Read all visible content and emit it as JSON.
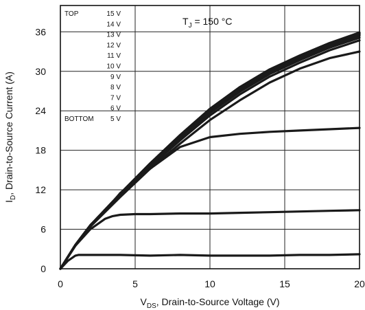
{
  "chart_data": {
    "type": "line",
    "xlabel": {
      "pre": "V",
      "sub": "DS",
      "post": ", Drain-to-Source Voltage (V)"
    },
    "ylabel": {
      "pre": "I",
      "sub": "D",
      "post": ", Drain-to-Source Current (A)"
    },
    "xlim": [
      0,
      20
    ],
    "ylim": [
      0,
      40
    ],
    "x_ticks": [
      0,
      5,
      10,
      15,
      20
    ],
    "y_ticks": [
      0,
      6,
      12,
      18,
      24,
      30,
      36
    ],
    "x_tick_labels": [
      "0",
      "5",
      "10",
      "15",
      "20"
    ],
    "y_tick_labels": [
      "0",
      "6",
      "12",
      "18",
      "24",
      "30",
      "36"
    ],
    "grid": true,
    "annotation": {
      "pre": "T",
      "sub": "J",
      "post": " = 150 °C"
    },
    "legend": {
      "top_label": "TOP",
      "bottom_label": "BOTTOM",
      "entries": [
        "15 V",
        "14 V",
        "13 V",
        "12 V",
        "11 V",
        "10 V",
        "9 V",
        "8 V",
        "7 V",
        "6 V",
        "5 V"
      ]
    },
    "series": [
      {
        "x": [
          0,
          1,
          2,
          4,
          6,
          8,
          10,
          12,
          14,
          16,
          18,
          20
        ],
        "y": [
          0,
          3.6,
          6.6,
          11.4,
          16.0,
          20.3,
          24.3,
          27.6,
          30.3,
          32.4,
          34.3,
          35.9
        ]
      },
      {
        "x": [
          0,
          1,
          2,
          4,
          6,
          8,
          10,
          12,
          14,
          16,
          18,
          20
        ],
        "y": [
          0,
          3.6,
          6.6,
          11.4,
          16.0,
          20.3,
          24.3,
          27.6,
          30.3,
          32.4,
          34.3,
          35.8
        ]
      },
      {
        "x": [
          0,
          1,
          2,
          4,
          6,
          8,
          10,
          12,
          14,
          16,
          18,
          20
        ],
        "y": [
          0,
          3.6,
          6.6,
          11.4,
          16.0,
          20.2,
          24.2,
          27.5,
          30.2,
          32.3,
          34.2,
          35.7
        ]
      },
      {
        "x": [
          0,
          1,
          2,
          4,
          6,
          8,
          10,
          12,
          14,
          16,
          18,
          20
        ],
        "y": [
          0,
          3.6,
          6.6,
          11.3,
          15.9,
          20.1,
          24.1,
          27.4,
          30.1,
          32.2,
          34.1,
          35.6
        ]
      },
      {
        "x": [
          0,
          1,
          2,
          4,
          6,
          8,
          10,
          12,
          14,
          16,
          18,
          20
        ],
        "y": [
          0,
          3.6,
          6.6,
          11.3,
          15.9,
          20.0,
          24.0,
          27.2,
          29.9,
          32.0,
          33.9,
          35.4
        ]
      },
      {
        "x": [
          0,
          1,
          2,
          4,
          6,
          8,
          10,
          12,
          14,
          16,
          18,
          20
        ],
        "y": [
          0,
          3.6,
          6.6,
          11.2,
          15.7,
          19.8,
          23.7,
          26.9,
          29.6,
          31.7,
          33.6,
          35.1
        ]
      },
      {
        "x": [
          0,
          1,
          2,
          4,
          6,
          8,
          10,
          12,
          14,
          16,
          18,
          20
        ],
        "y": [
          0,
          3.6,
          6.5,
          11.1,
          15.5,
          19.5,
          23.3,
          26.5,
          29.2,
          31.3,
          33.2,
          34.7
        ]
      },
      {
        "x": [
          0,
          1,
          2,
          4,
          6,
          8,
          10,
          12,
          14,
          16,
          18,
          20
        ],
        "y": [
          0,
          3.5,
          6.4,
          10.9,
          15.2,
          19.0,
          22.6,
          25.6,
          28.3,
          30.4,
          32.0,
          33.0
        ]
      },
      {
        "x": [
          0,
          1,
          2,
          3,
          4,
          6,
          8,
          10,
          12,
          14,
          16,
          18,
          20
        ],
        "y": [
          0,
          3.5,
          6.4,
          8.8,
          11.5,
          15.2,
          18.5,
          20.0,
          20.5,
          20.8,
          21.0,
          21.2,
          21.4
        ]
      },
      {
        "x": [
          0,
          1,
          2,
          3,
          3.5,
          4,
          5,
          6,
          8,
          10,
          12,
          14,
          16,
          18,
          20
        ],
        "y": [
          0,
          3.5,
          6.0,
          7.6,
          8.0,
          8.2,
          8.3,
          8.3,
          8.4,
          8.4,
          8.5,
          8.6,
          8.7,
          8.8,
          8.9
        ]
      },
      {
        "x": [
          0,
          0.5,
          1,
          1.2,
          2,
          4,
          6,
          8,
          10,
          12,
          14,
          16,
          18,
          20
        ],
        "y": [
          0,
          1.2,
          2.0,
          2.1,
          2.1,
          2.1,
          2.0,
          2.1,
          2.0,
          2.0,
          2.0,
          2.1,
          2.1,
          2.2
        ]
      }
    ]
  }
}
